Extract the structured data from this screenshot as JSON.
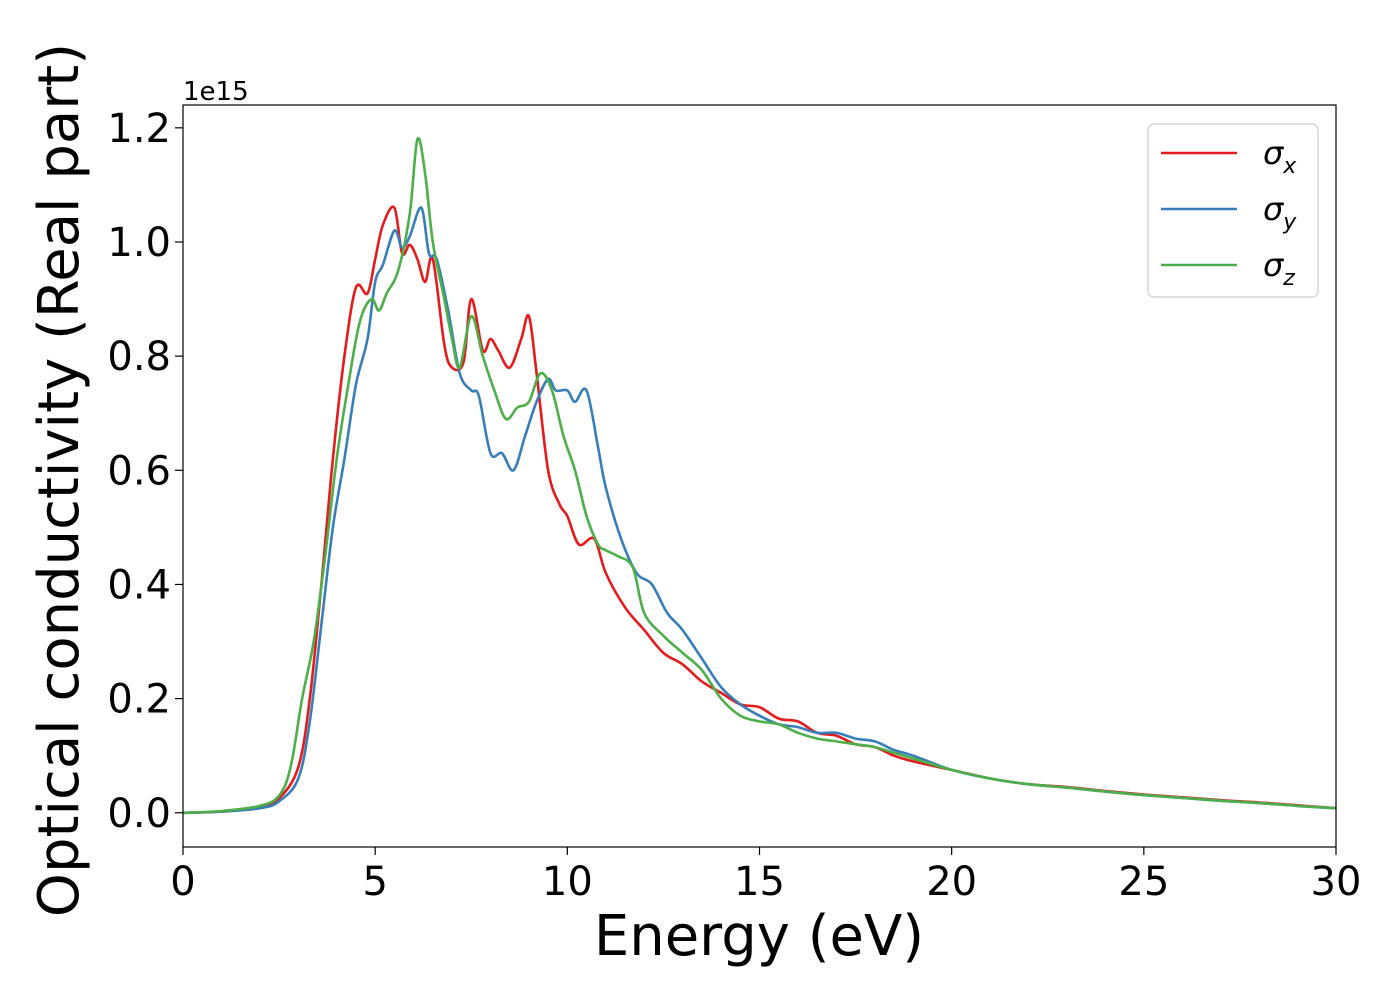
{
  "chart_data": {
    "type": "line",
    "xlabel": "Energy (eV)",
    "ylabel": "Optical conductivity (Real part)",
    "y_offset_label": "1e15",
    "xlim": [
      0,
      30
    ],
    "ylim": [
      -0.06,
      1.24
    ],
    "x_ticks": [
      0,
      5,
      10,
      15,
      20,
      25,
      30
    ],
    "y_ticks": [
      0.0,
      0.2,
      0.4,
      0.6,
      0.8,
      1.0,
      1.2
    ],
    "grid": false,
    "legend_position": "top-right",
    "series": [
      {
        "name": "σx",
        "symbol": "σ",
        "subscript": "x",
        "color": "#e41a1c",
        "x": [
          0,
          1,
          2,
          2.5,
          3,
          3.3,
          3.6,
          3.9,
          4.2,
          4.5,
          4.8,
          5.0,
          5.2,
          5.5,
          5.7,
          5.9,
          6.1,
          6.3,
          6.5,
          6.8,
          7.0,
          7.3,
          7.5,
          7.8,
          8.0,
          8.2,
          8.5,
          8.8,
          9.0,
          9.2,
          9.5,
          9.8,
          10.0,
          10.3,
          10.7,
          11.0,
          11.5,
          12.0,
          12.5,
          13.0,
          13.5,
          14.0,
          14.5,
          15.0,
          15.5,
          16.0,
          16.5,
          17.0,
          17.5,
          18.0,
          18.5,
          19.0,
          20.0,
          21.0,
          22.0,
          23.0,
          24.0,
          25.0,
          26.0,
          27.0,
          28.0,
          29.0,
          30.0
        ],
        "y": [
          0.0,
          0.002,
          0.01,
          0.025,
          0.08,
          0.2,
          0.4,
          0.62,
          0.8,
          0.92,
          0.91,
          0.97,
          1.03,
          1.06,
          0.98,
          0.995,
          0.97,
          0.93,
          0.97,
          0.82,
          0.78,
          0.79,
          0.9,
          0.81,
          0.83,
          0.81,
          0.78,
          0.83,
          0.87,
          0.77,
          0.6,
          0.54,
          0.52,
          0.47,
          0.48,
          0.42,
          0.36,
          0.32,
          0.28,
          0.26,
          0.23,
          0.21,
          0.19,
          0.185,
          0.165,
          0.16,
          0.14,
          0.135,
          0.12,
          0.115,
          0.1,
          0.09,
          0.075,
          0.06,
          0.05,
          0.045,
          0.038,
          0.032,
          0.027,
          0.022,
          0.018,
          0.013,
          0.008
        ]
      },
      {
        "name": "σy",
        "symbol": "σ",
        "subscript": "y",
        "color": "#377eb8",
        "x": [
          0,
          1,
          2,
          2.5,
          3,
          3.3,
          3.6,
          3.9,
          4.2,
          4.5,
          4.8,
          5.0,
          5.2,
          5.5,
          5.7,
          5.9,
          6.2,
          6.4,
          6.6,
          6.9,
          7.2,
          7.5,
          7.7,
          8.0,
          8.3,
          8.6,
          8.9,
          9.2,
          9.5,
          9.7,
          10.0,
          10.2,
          10.5,
          10.8,
          11.0,
          11.4,
          11.8,
          12.2,
          12.6,
          13.0,
          13.5,
          14.0,
          14.5,
          15.0,
          15.5,
          16.0,
          16.5,
          17.0,
          17.5,
          18.0,
          18.5,
          19.0,
          20.0,
          21.0,
          22.0,
          23.0,
          24.0,
          25.0,
          26.0,
          27.0,
          28.0,
          29.0,
          30.0
        ],
        "y": [
          0.0,
          0.002,
          0.008,
          0.02,
          0.06,
          0.16,
          0.33,
          0.5,
          0.62,
          0.75,
          0.83,
          0.93,
          0.96,
          1.02,
          0.99,
          1.01,
          1.06,
          0.98,
          0.97,
          0.88,
          0.77,
          0.74,
          0.73,
          0.63,
          0.63,
          0.6,
          0.66,
          0.72,
          0.76,
          0.74,
          0.74,
          0.72,
          0.74,
          0.64,
          0.57,
          0.48,
          0.42,
          0.4,
          0.35,
          0.32,
          0.27,
          0.22,
          0.19,
          0.17,
          0.155,
          0.15,
          0.14,
          0.14,
          0.13,
          0.125,
          0.11,
          0.1,
          0.075,
          0.06,
          0.05,
          0.044,
          0.037,
          0.031,
          0.026,
          0.021,
          0.017,
          0.012,
          0.008
        ]
      },
      {
        "name": "σz",
        "symbol": "σ",
        "subscript": "z",
        "color": "#4daf4a",
        "x": [
          0,
          1,
          2,
          2.5,
          2.8,
          3.1,
          3.4,
          3.7,
          4.0,
          4.3,
          4.6,
          4.9,
          5.1,
          5.3,
          5.6,
          5.9,
          6.1,
          6.3,
          6.5,
          6.8,
          7.0,
          7.2,
          7.5,
          7.8,
          8.1,
          8.4,
          8.7,
          9.0,
          9.3,
          9.6,
          9.9,
          10.2,
          10.5,
          10.8,
          11.0,
          11.3,
          11.7,
          12.0,
          12.5,
          13.0,
          13.5,
          14.0,
          14.5,
          15.0,
          15.5,
          16.0,
          16.5,
          17.0,
          17.5,
          18.0,
          18.5,
          19.0,
          20.0,
          21.0,
          22.0,
          23.0,
          24.0,
          25.0,
          26.0,
          27.0,
          28.0,
          29.0,
          30.0
        ],
        "y": [
          0.0,
          0.003,
          0.012,
          0.03,
          0.08,
          0.2,
          0.3,
          0.45,
          0.62,
          0.75,
          0.86,
          0.9,
          0.88,
          0.91,
          0.95,
          1.05,
          1.18,
          1.12,
          1.0,
          0.9,
          0.83,
          0.78,
          0.87,
          0.8,
          0.74,
          0.69,
          0.71,
          0.72,
          0.77,
          0.74,
          0.66,
          0.6,
          0.52,
          0.47,
          0.46,
          0.45,
          0.43,
          0.35,
          0.31,
          0.28,
          0.25,
          0.2,
          0.17,
          0.16,
          0.155,
          0.14,
          0.13,
          0.125,
          0.12,
          0.115,
          0.105,
          0.095,
          0.075,
          0.06,
          0.05,
          0.044,
          0.037,
          0.031,
          0.026,
          0.021,
          0.017,
          0.012,
          0.008
        ]
      }
    ]
  }
}
